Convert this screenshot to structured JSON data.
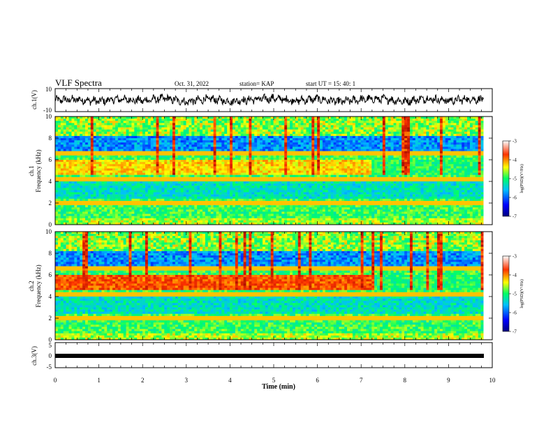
{
  "header": {
    "title": "VLF Spectra",
    "date": "Oct. 31, 2022",
    "station": "station= KAP",
    "start": "start  UT =   15: 40: 1"
  },
  "chart_data": [
    {
      "type": "line",
      "panel": "ch1-waveform",
      "ylabel": "ch.1(V)",
      "ylim": [
        -10,
        10
      ],
      "yticks": [
        "10",
        "-10"
      ],
      "xlim": [
        0,
        10
      ],
      "approx_range": [
        -5,
        5
      ],
      "x": [
        0,
        0.5,
        1,
        1.5,
        2,
        2.5,
        3,
        3.5,
        4,
        4.5,
        5,
        5.5,
        6,
        6.5,
        7,
        7.5,
        8,
        8.5,
        9,
        9.5,
        9.8
      ],
      "values": [
        0,
        1,
        -2,
        2,
        -1,
        3,
        -3,
        2,
        -2,
        1,
        3,
        -1,
        2,
        -3,
        1,
        2,
        -2,
        3,
        -1,
        2,
        0
      ]
    },
    {
      "type": "heatmap",
      "panel": "ch1-spectrogram",
      "ylabel": "ch.1\nFrequency (kHz)",
      "ylim": [
        0,
        10
      ],
      "yticks": [
        "0",
        "2",
        "4",
        "6",
        "8",
        "10"
      ],
      "xlim": [
        0,
        10
      ],
      "colorbar": {
        "label": "log(PSD)(V²/Hz)",
        "ticks": [
          "-3",
          "-4",
          "-5",
          "-6",
          "-7"
        ],
        "range": [
          -7,
          -3
        ]
      }
    },
    {
      "type": "heatmap",
      "panel": "ch2-spectrogram",
      "ylabel": "ch.2\nFrequency (kHz)",
      "ylim": [
        0,
        10
      ],
      "yticks": [
        "0",
        "2",
        "4",
        "6",
        "8",
        "10"
      ],
      "xlim": [
        0,
        10
      ],
      "colorbar": {
        "label": "log(PSD)(V²/Hz)",
        "ticks": [
          "-3",
          "-4",
          "-5",
          "-6",
          "-7"
        ],
        "range": [
          -7,
          -3
        ]
      }
    },
    {
      "type": "line",
      "panel": "ch3-waveform",
      "ylabel": "ch.3(V)",
      "ylim": [
        -5,
        5
      ],
      "yticks": [
        "5",
        "0",
        "-5"
      ],
      "xlim": [
        0,
        10
      ],
      "x": [
        0,
        9.8
      ],
      "values": [
        0,
        0
      ]
    }
  ],
  "xaxis": {
    "label": "Time (min)",
    "ticks": [
      "0",
      "1",
      "2",
      "3",
      "4",
      "5",
      "6",
      "7",
      "8",
      "9",
      "10"
    ]
  },
  "colors": {
    "trace": "#000000",
    "colormap": [
      "#00008b",
      "#0000ff",
      "#00bfff",
      "#00ff7f",
      "#ffff00",
      "#ff8c00",
      "#ff0000",
      "#8b0000"
    ]
  }
}
